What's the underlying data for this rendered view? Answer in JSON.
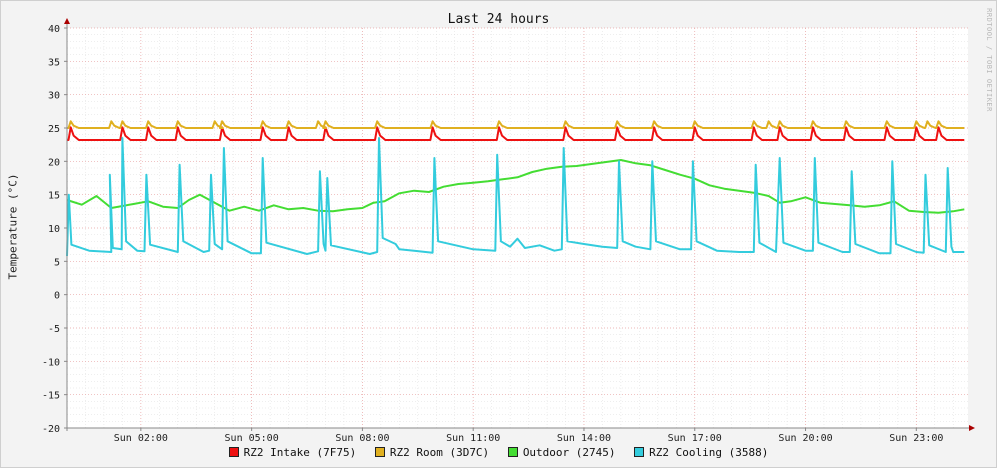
{
  "chart_data": {
    "type": "line",
    "title": "Last 24 hours",
    "ylabel": "Temperature (°C)",
    "xlabel": "",
    "ylim": [
      -20,
      40
    ],
    "yticks": [
      40,
      35,
      30,
      25,
      20,
      15,
      10,
      5,
      0,
      -5,
      -10,
      -15,
      -20
    ],
    "x_unit": "hours",
    "xlim": [
      0,
      24.4
    ],
    "xticks": [
      {
        "x": 2,
        "label": "Sun 02:00"
      },
      {
        "x": 5,
        "label": "Sun 05:00"
      },
      {
        "x": 8,
        "label": "Sun 08:00"
      },
      {
        "x": 11,
        "label": "Sun 11:00"
      },
      {
        "x": 14,
        "label": "Sun 14:00"
      },
      {
        "x": 17,
        "label": "Sun 17:00"
      },
      {
        "x": 20,
        "label": "Sun 20:00"
      },
      {
        "x": 23,
        "label": "Sun 23:00"
      }
    ],
    "grid": true,
    "legend_position": "bottom",
    "watermark": "RRDTOOL / TOBI OETIKER",
    "series": [
      {
        "name": "RZ2 Intake (7F75)",
        "color": "#ee1111",
        "base": 23.2,
        "spikes": {
          "delta": 1.9,
          "at": [
            0.1,
            1.5,
            2.2,
            3.0,
            4.2,
            5.3,
            6.0,
            7.0,
            8.4,
            9.9,
            11.7,
            13.5,
            14.9,
            15.9,
            17.0,
            18.6,
            19.3,
            20.2,
            21.1,
            22.2,
            23.0,
            23.6
          ]
        }
      },
      {
        "name": "RZ2 Room (3D7C)",
        "color": "#e0b020",
        "base": 25.0,
        "spikes": {
          "delta": 1.0,
          "at": [
            0.1,
            1.2,
            1.5,
            2.2,
            3.0,
            4.0,
            4.2,
            5.3,
            6.0,
            6.8,
            7.0,
            8.4,
            9.9,
            11.7,
            13.5,
            14.9,
            15.9,
            17.0,
            18.6,
            19.0,
            19.3,
            20.2,
            21.1,
            22.2,
            23.0,
            23.3,
            23.6
          ]
        }
      },
      {
        "name": "Outdoor (2745)",
        "color": "#44dd33",
        "points": [
          [
            0,
            14.2
          ],
          [
            0.4,
            13.5
          ],
          [
            0.8,
            14.8
          ],
          [
            1.2,
            13.0
          ],
          [
            1.8,
            13.6
          ],
          [
            2.2,
            14.0
          ],
          [
            2.6,
            13.2
          ],
          [
            3.0,
            13.0
          ],
          [
            3.3,
            14.2
          ],
          [
            3.6,
            15.0
          ],
          [
            4.0,
            13.8
          ],
          [
            4.4,
            12.6
          ],
          [
            4.8,
            13.2
          ],
          [
            5.2,
            12.6
          ],
          [
            5.6,
            13.4
          ],
          [
            6.0,
            12.8
          ],
          [
            6.4,
            13.0
          ],
          [
            6.8,
            12.6
          ],
          [
            7.2,
            12.5
          ],
          [
            7.6,
            12.8
          ],
          [
            8.0,
            13.0
          ],
          [
            8.3,
            13.8
          ],
          [
            8.6,
            14.0
          ],
          [
            9.0,
            15.2
          ],
          [
            9.4,
            15.6
          ],
          [
            9.8,
            15.4
          ],
          [
            10.2,
            16.2
          ],
          [
            10.6,
            16.6
          ],
          [
            11.0,
            16.8
          ],
          [
            11.4,
            17.0
          ],
          [
            11.8,
            17.3
          ],
          [
            12.2,
            17.6
          ],
          [
            12.6,
            18.4
          ],
          [
            13.0,
            18.9
          ],
          [
            13.4,
            19.2
          ],
          [
            13.8,
            19.3
          ],
          [
            14.2,
            19.6
          ],
          [
            14.6,
            19.9
          ],
          [
            15.0,
            20.2
          ],
          [
            15.4,
            19.7
          ],
          [
            15.8,
            19.4
          ],
          [
            16.2,
            18.7
          ],
          [
            16.6,
            18.0
          ],
          [
            17.0,
            17.4
          ],
          [
            17.4,
            16.4
          ],
          [
            17.8,
            15.9
          ],
          [
            18.2,
            15.6
          ],
          [
            18.6,
            15.3
          ],
          [
            19.0,
            14.8
          ],
          [
            19.3,
            13.8
          ],
          [
            19.6,
            14.0
          ],
          [
            20.0,
            14.6
          ],
          [
            20.4,
            13.8
          ],
          [
            20.8,
            13.6
          ],
          [
            21.2,
            13.4
          ],
          [
            21.6,
            13.2
          ],
          [
            22.0,
            13.4
          ],
          [
            22.4,
            14.0
          ],
          [
            22.8,
            12.6
          ],
          [
            23.2,
            12.4
          ],
          [
            23.6,
            12.3
          ],
          [
            24.0,
            12.5
          ],
          [
            24.3,
            12.8
          ]
        ]
      },
      {
        "name": "RZ2 Cooling (3588)",
        "color": "#33ccdd",
        "points": [
          [
            0,
            5.8
          ],
          [
            0.05,
            15
          ],
          [
            0.12,
            7.5
          ],
          [
            0.6,
            6.6
          ],
          [
            1.2,
            6.4
          ],
          [
            1.16,
            18
          ],
          [
            1.24,
            7.0
          ],
          [
            1.48,
            6.8
          ],
          [
            1.5,
            23.5
          ],
          [
            1.6,
            8.0
          ],
          [
            1.9,
            6.6
          ],
          [
            2.1,
            6.5
          ],
          [
            2.15,
            18
          ],
          [
            2.25,
            7.5
          ],
          [
            3.0,
            6.4
          ],
          [
            3.05,
            19.5
          ],
          [
            3.15,
            8.0
          ],
          [
            3.7,
            6.4
          ],
          [
            3.85,
            6.6
          ],
          [
            3.9,
            18
          ],
          [
            4.0,
            7.6
          ],
          [
            4.2,
            6.8
          ],
          [
            4.25,
            22
          ],
          [
            4.35,
            8.0
          ],
          [
            5.0,
            6.2
          ],
          [
            5.25,
            6.2
          ],
          [
            5.3,
            20.5
          ],
          [
            5.4,
            7.8
          ],
          [
            6.5,
            6.1
          ],
          [
            6.8,
            6.5
          ],
          [
            6.85,
            18.5
          ],
          [
            6.95,
            7.6
          ],
          [
            7.0,
            6.6
          ],
          [
            7.05,
            17.5
          ],
          [
            7.15,
            7.4
          ],
          [
            8.2,
            6.1
          ],
          [
            8.4,
            6.4
          ],
          [
            8.45,
            23.5
          ],
          [
            8.55,
            8.5
          ],
          [
            8.9,
            7.6
          ],
          [
            9.0,
            6.8
          ],
          [
            9.4,
            6.6
          ],
          [
            9.9,
            6.3
          ],
          [
            9.95,
            20.5
          ],
          [
            10.05,
            8.0
          ],
          [
            11.0,
            6.8
          ],
          [
            11.6,
            6.6
          ],
          [
            11.65,
            21.0
          ],
          [
            11.75,
            8.0
          ],
          [
            12.0,
            7.2
          ],
          [
            12.2,
            8.4
          ],
          [
            12.4,
            7.0
          ],
          [
            12.8,
            7.4
          ],
          [
            13.2,
            6.6
          ],
          [
            13.4,
            6.8
          ],
          [
            13.45,
            22.0
          ],
          [
            13.55,
            8.0
          ],
          [
            14.0,
            7.6
          ],
          [
            14.5,
            7.2
          ],
          [
            14.9,
            7.0
          ],
          [
            14.95,
            20.0
          ],
          [
            15.05,
            8.0
          ],
          [
            15.4,
            7.2
          ],
          [
            15.8,
            6.8
          ],
          [
            15.85,
            20.0
          ],
          [
            15.95,
            8.0
          ],
          [
            16.6,
            6.8
          ],
          [
            16.9,
            6.8
          ],
          [
            16.95,
            20.0
          ],
          [
            17.05,
            8.0
          ],
          [
            17.6,
            6.6
          ],
          [
            18.2,
            6.4
          ],
          [
            18.6,
            6.4
          ],
          [
            18.65,
            19.5
          ],
          [
            18.75,
            7.8
          ],
          [
            19.2,
            6.4
          ],
          [
            19.3,
            20.5
          ],
          [
            19.4,
            7.8
          ],
          [
            20.0,
            6.6
          ],
          [
            20.2,
            6.6
          ],
          [
            20.25,
            20.5
          ],
          [
            20.35,
            7.8
          ],
          [
            21.0,
            6.4
          ],
          [
            21.2,
            6.4
          ],
          [
            21.25,
            18.5
          ],
          [
            21.35,
            7.6
          ],
          [
            22.0,
            6.2
          ],
          [
            22.3,
            6.2
          ],
          [
            22.35,
            20.0
          ],
          [
            22.45,
            7.6
          ],
          [
            23.0,
            6.4
          ],
          [
            23.2,
            6.3
          ],
          [
            23.25,
            18.0
          ],
          [
            23.35,
            7.4
          ],
          [
            23.8,
            6.4
          ],
          [
            23.85,
            19.0
          ],
          [
            23.95,
            7.2
          ],
          [
            24.0,
            6.4
          ],
          [
            24.3,
            6.4
          ]
        ]
      }
    ]
  }
}
